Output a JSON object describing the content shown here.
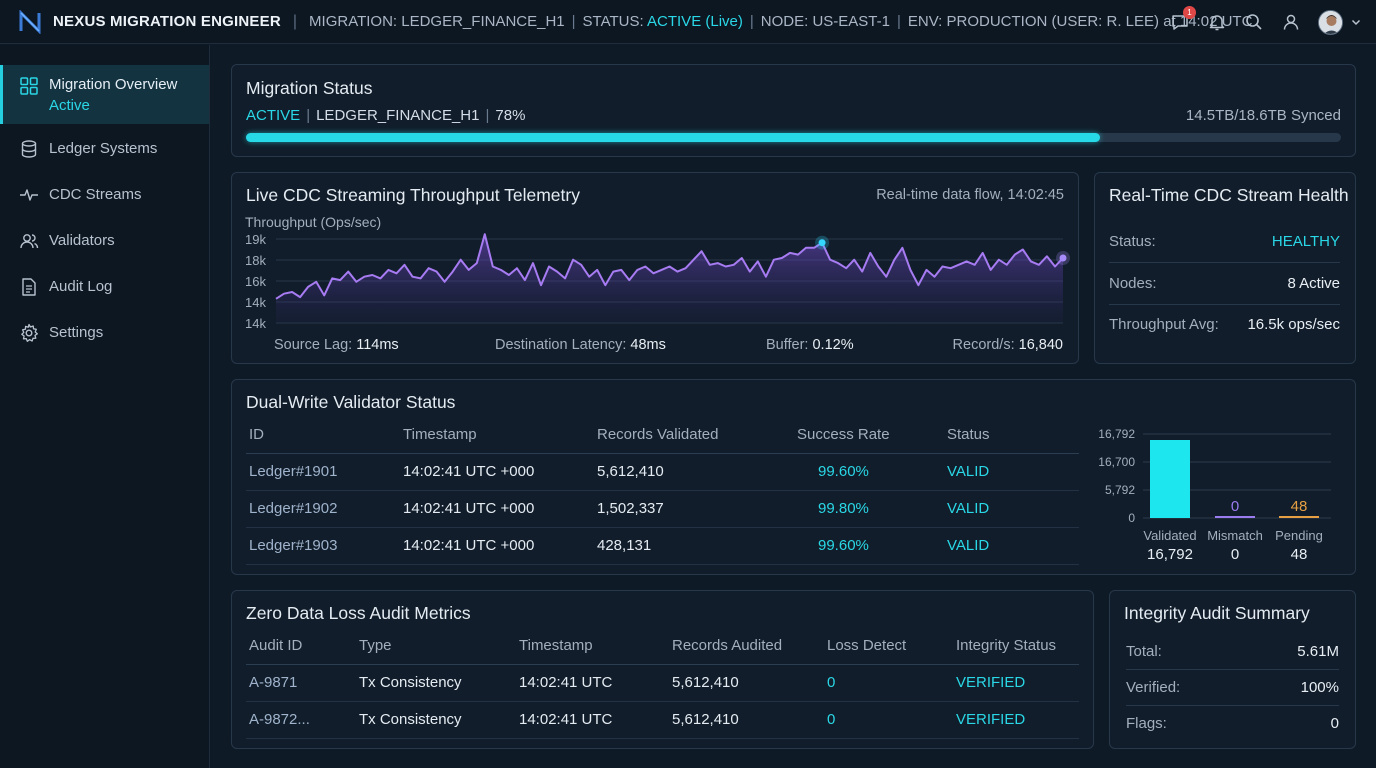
{
  "header": {
    "app_name": "NEXUS MIGRATION ENGINEER",
    "migration_label": "MIGRATION: LEDGER_FINANCE_H1",
    "status_label": "STATUS:",
    "status_value": "ACTIVE (Live)",
    "node_label": "NODE: US-EAST-1",
    "env_label": "ENV: PRODUCTION (USER: R. LEE) at 14:02 UTC",
    "notification_count": "1",
    "icons": [
      "chat-icon",
      "bell-icon",
      "search-icon",
      "user-icon",
      "avatar",
      "chevron-down-icon"
    ]
  },
  "sidebar": {
    "items": [
      {
        "label": "Migration Overview",
        "sub": "Active",
        "icon": "grid-icon"
      },
      {
        "label": "Ledger Systems",
        "icon": "database-icon"
      },
      {
        "label": "CDC Streams",
        "icon": "pulse-icon"
      },
      {
        "label": "Validators",
        "icon": "users-icon"
      },
      {
        "label": "Audit Log",
        "icon": "document-icon"
      },
      {
        "label": "Settings",
        "icon": "gear-icon"
      }
    ]
  },
  "migration_status": {
    "title": "Migration Status",
    "state": "ACTIVE",
    "name": "LEDGER_FINANCE_H1",
    "percent_label": "78%",
    "progress": 0.78,
    "synced": "14.5TB/18.6TB Synced"
  },
  "cdc_chart": {
    "title": "Live CDC Streaming Throughput Telemetry",
    "subtitle": "Real-time data flow, 14:02:45",
    "metrics": [
      {
        "key": "Source Lag:",
        "value": "114ms"
      },
      {
        "key": "Destination Latency:",
        "value": "48ms"
      },
      {
        "key": "Buffer:",
        "value": "0.12%"
      },
      {
        "key": "Record/s:",
        "value": "16,840"
      }
    ]
  },
  "chart_data": {
    "type": "area",
    "title": "",
    "ylabel": "Throughput (Ops/sec)",
    "yticks": [
      "19k",
      "18k",
      "16k",
      "14k",
      "14k"
    ],
    "ylim": [
      13000,
      19000
    ],
    "grid": true,
    "series": [
      {
        "values": [
          14600,
          14900,
          15000,
          14700,
          15300,
          15600,
          14800,
          15800,
          15700,
          16200,
          15600,
          15900,
          16000,
          15800,
          16300,
          16100,
          16600,
          15900,
          15800,
          16400,
          16200,
          15600,
          16200,
          16900,
          16300,
          16700,
          18400,
          16500,
          16300,
          16000,
          16400,
          15700,
          16700,
          15400,
          16500,
          16200,
          15800,
          16900,
          16600,
          15900,
          16300,
          15400,
          16200,
          16300,
          15700,
          16300,
          16500,
          16100,
          16300,
          16500,
          16200,
          16400,
          16900,
          17400,
          16600,
          16700,
          16500,
          16600,
          17000,
          16200,
          16800,
          15900,
          16900,
          17000,
          17300,
          17200,
          17600,
          17600,
          17900,
          16900,
          16700,
          16400,
          16900,
          16200,
          17300,
          16500,
          15900,
          16900,
          17600,
          16300,
          15400,
          16300,
          15900,
          16500,
          16400,
          16600,
          16800,
          16600,
          17300,
          16300,
          16900,
          16600,
          17200,
          17500,
          16800,
          16600,
          17100,
          16500,
          17000
        ]
      }
    ],
    "highlight_points": [
      {
        "index": 68,
        "value": 17900,
        "color": "#33d7ff"
      },
      {
        "index": 98,
        "value": 17000,
        "color": "#a78bfa"
      }
    ]
  },
  "health": {
    "title": "Real-Time CDC Stream Health",
    "rows": [
      {
        "key": "Status:",
        "value": "HEALTHY",
        "color": "#2ad7e6"
      },
      {
        "key": "Nodes:",
        "value": "8 Active"
      },
      {
        "key": "Throughput Avg:",
        "value": "16.5k ops/sec"
      }
    ]
  },
  "validator": {
    "title": "Dual-Write Validator Status",
    "columns": [
      "ID",
      "Timestamp",
      "Records Validated",
      "Success Rate",
      "Status"
    ],
    "rows": [
      [
        "Ledger#1901",
        "14:02:41 UTC +000",
        "5,612,410",
        "99.60%",
        "VALID"
      ],
      [
        "Ledger#1902",
        "14:02:41 UTC +000",
        "1,502,337",
        "99.80%",
        "VALID"
      ],
      [
        "Ledger#1903",
        "14:02:41 UTC +000",
        "428,131",
        "99.60%",
        "VALID"
      ]
    ],
    "bar_chart": {
      "yticks": [
        "16,792",
        "16,700",
        "5,792",
        "0"
      ],
      "bars": [
        {
          "label": "Validated",
          "value": 16792,
          "display": "16,792",
          "color": "#1ee6ef"
        },
        {
          "label": "Mismatch",
          "value": 0,
          "display": "0",
          "top_label": "0",
          "color": "#9b7bf0"
        },
        {
          "label": "Pending",
          "value": 48,
          "display": "48",
          "top_label": "48",
          "color": "#e6a043"
        }
      ]
    }
  },
  "audit": {
    "title": "Zero Data Loss Audit Metrics",
    "columns": [
      "Audit ID",
      "Type",
      "Timestamp",
      "Records Audited",
      "Loss Detect",
      "Integrity Status"
    ],
    "rows": [
      [
        "A-9871",
        "Tx Consistency",
        "14:02:41 UTC",
        "5,612,410",
        "0",
        "VERIFIED"
      ],
      [
        "A-9872...",
        "Tx Consistency",
        "14:02:41 UTC",
        "5,612,410",
        "0",
        "VERIFIED"
      ]
    ]
  },
  "integrity": {
    "title": "Integrity Audit Summary",
    "rows": [
      {
        "key": "Total:",
        "value": "5.61M"
      },
      {
        "key": "Verified:",
        "value": "100%"
      },
      {
        "key": "Flags:",
        "value": "0"
      }
    ]
  }
}
